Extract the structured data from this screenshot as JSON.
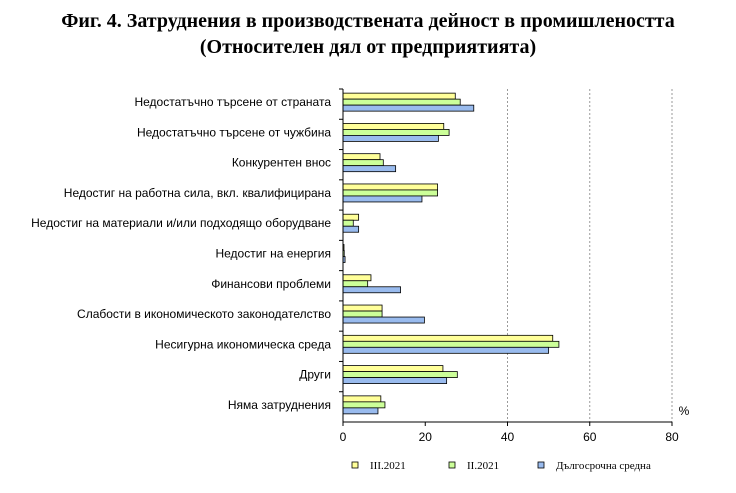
{
  "chart_data": {
    "type": "bar",
    "orientation": "horizontal",
    "title": "Фиг. 4. Затруднения в производствената дейност в промишлеността",
    "subtitle": "(Относителен дял от предприятията)",
    "unit": "%",
    "xlim": [
      0,
      80
    ],
    "ticks": [
      "0",
      "20",
      "40",
      "60",
      "80"
    ],
    "grid": "vertical dashed at 40, 60, 80",
    "legend_position": "bottom",
    "categories": [
      "Недостатъчно търсене от страната",
      "Недостатъчно търсене от чужбина",
      "Конкурентен внос",
      "Недостиг на работна сила, вкл. квалифицирана",
      "Недостиг на материали и/или подходящо оборудване",
      "Недостиг на енергия",
      "Финансови проблеми",
      "Слабости в икономическото законодателство",
      "Несигурна икономическа среда",
      "Други",
      "Няма затруднения"
    ],
    "series": [
      {
        "name": "III.2021",
        "color": "#ffff99",
        "values": [
          27.3,
          24.5,
          9.0,
          23.0,
          3.8,
          0.2,
          6.8,
          9.5,
          51.0,
          24.3,
          9.2
        ]
      },
      {
        "name": "II.2021",
        "color": "#ccff99",
        "values": [
          28.5,
          25.8,
          9.8,
          23.0,
          2.5,
          0.3,
          6.0,
          9.5,
          52.5,
          27.8,
          10.2
        ]
      },
      {
        "name": "Дългосрочна средна",
        "color": "#99bbee",
        "values": [
          31.8,
          23.2,
          12.8,
          19.2,
          3.8,
          0.5,
          14.0,
          19.8,
          50.0,
          25.2,
          8.5
        ]
      }
    ]
  }
}
